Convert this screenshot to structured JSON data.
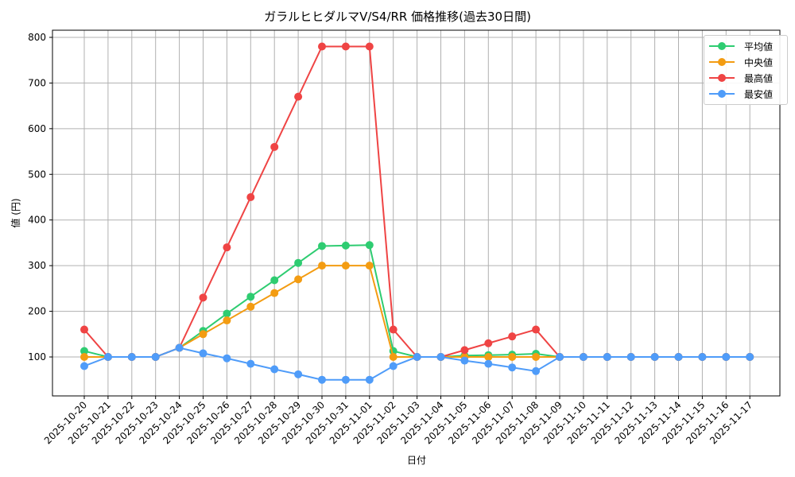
{
  "chart_data": {
    "type": "line",
    "title": "ガラルヒヒダルマV/S4/RR 価格推移(過去30日間)",
    "xlabel": "日付",
    "ylabel": "値 (円)",
    "ylim": [
      10,
      820
    ],
    "yticks": [
      100,
      200,
      300,
      400,
      500,
      600,
      700,
      800
    ],
    "grid": true,
    "legend_position": "upper right",
    "categories": [
      "2025-10-20",
      "2025-10-21",
      "2025-10-22",
      "2025-10-23",
      "2025-10-24",
      "2025-10-25",
      "2025-10-26",
      "2025-10-27",
      "2025-10-28",
      "2025-10-29",
      "2025-10-30",
      "2025-10-31",
      "2025-11-01",
      "2025-11-02",
      "2025-11-03",
      "2025-11-04",
      "2025-11-05",
      "2025-11-06",
      "2025-11-07",
      "2025-11-08",
      "2025-11-09",
      "2025-11-10",
      "2025-11-11",
      "2025-11-12",
      "2025-11-13",
      "2025-11-14",
      "2025-11-15",
      "2025-11-16",
      "2025-11-17"
    ],
    "series": [
      {
        "name": "平均値",
        "color": "#2ecc71",
        "values": [
          113,
          100,
          100,
          100,
          120,
          157,
          195,
          232,
          268,
          306,
          343,
          344,
          345,
          113,
          100,
          100,
          103,
          104,
          105,
          107,
          100,
          100,
          100,
          100,
          100,
          100,
          100,
          100,
          100
        ]
      },
      {
        "name": "中央値",
        "color": "#f39c12",
        "values": [
          100,
          100,
          100,
          100,
          120,
          150,
          180,
          210,
          240,
          270,
          300,
          300,
          300,
          100,
          100,
          100,
          100,
          100,
          100,
          100,
          100,
          100,
          100,
          100,
          100,
          100,
          100,
          100,
          100
        ]
      },
      {
        "name": "最高値",
        "color": "#ef4444",
        "values": [
          160,
          100,
          100,
          100,
          120,
          230,
          340,
          450,
          560,
          670,
          780,
          780,
          780,
          160,
          100,
          100,
          115,
          130,
          145,
          160,
          100,
          100,
          100,
          100,
          100,
          100,
          100,
          100,
          100
        ]
      },
      {
        "name": "最安値",
        "color": "#4f9cf9",
        "values": [
          80,
          100,
          100,
          100,
          120,
          108,
          97,
          85,
          73,
          62,
          50,
          50,
          50,
          80,
          100,
          100,
          92,
          85,
          77,
          69,
          100,
          100,
          100,
          100,
          100,
          100,
          100,
          100,
          100
        ]
      }
    ]
  },
  "legend": {
    "items": [
      {
        "label": "平均値",
        "color": "#2ecc71"
      },
      {
        "label": "中央値",
        "color": "#f39c12"
      },
      {
        "label": "最高値",
        "color": "#ef4444"
      },
      {
        "label": "最安値",
        "color": "#4f9cf9"
      }
    ]
  }
}
